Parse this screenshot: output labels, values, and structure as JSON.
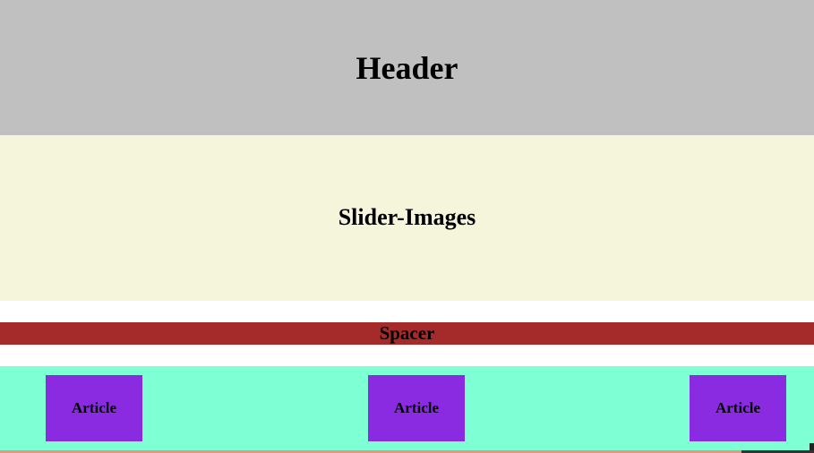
{
  "header": {
    "title": "Header"
  },
  "slider": {
    "title": "Slider-Images"
  },
  "spacer": {
    "label": "Spacer"
  },
  "articles": [
    {
      "label": "Article"
    },
    {
      "label": "Article"
    },
    {
      "label": "Article"
    }
  ],
  "colors": {
    "header_bg": "#c0c0c0",
    "slider_bg": "#f5f5dc",
    "spacer_bg": "#a52a2a",
    "articles_bg": "#7fffd4",
    "article_box": "#8a2be2",
    "footer": "#e9967a"
  }
}
